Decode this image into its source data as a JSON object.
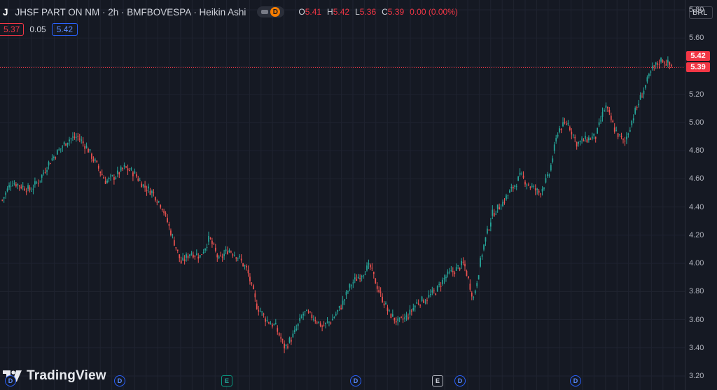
{
  "legend": {
    "symbol_letter": "J",
    "title": "JHSF PART ON NM · 2h · BMFBOVESPA · Heikin Ashi",
    "badge": "D",
    "ohlc": [
      {
        "key": "O",
        "value": "5.41"
      },
      {
        "key": "H",
        "value": "5.42"
      },
      {
        "key": "L",
        "value": "5.36"
      },
      {
        "key": "C",
        "value": "5.39"
      }
    ],
    "change": "0.00 (0.00%)"
  },
  "trade": {
    "sell": "5.37",
    "spread": "0.05",
    "buy": "5.42"
  },
  "currency": "BRL",
  "price_tags": {
    "ask": "5.42",
    "last": "5.39"
  },
  "logo_text": "TradingView",
  "events": [
    {
      "type": "dividend",
      "label": "D"
    },
    {
      "type": "dividend",
      "label": "D"
    },
    {
      "type": "earnings-upcoming",
      "label": "E"
    },
    {
      "type": "dividend",
      "label": "D"
    },
    {
      "type": "earnings",
      "label": "E"
    },
    {
      "type": "dividend",
      "label": "D"
    },
    {
      "type": "dividend",
      "label": "D"
    }
  ],
  "colors": {
    "up": "#26a69a",
    "down": "#ef5350",
    "price_tag": "#f23645",
    "background": "#151923"
  },
  "chart_data": {
    "type": "candlestick",
    "chart_style": "Heikin Ashi",
    "interval": "2h",
    "currency": "BRL",
    "y_ticks": [
      "5.80",
      "5.60",
      "5.40",
      "5.20",
      "5.00",
      "4.80",
      "4.60",
      "4.40",
      "4.20",
      "4.00",
      "3.80",
      "3.60",
      "3.40",
      "3.20"
    ],
    "ylim": [
      3.2,
      5.82
    ],
    "last_price": 5.39,
    "grid": true,
    "approx_close_path": [
      4.45,
      4.58,
      4.55,
      4.52,
      4.6,
      4.72,
      4.8,
      4.88,
      4.9,
      4.82,
      4.7,
      4.58,
      4.62,
      4.68,
      4.64,
      4.55,
      4.5,
      4.4,
      4.2,
      4.0,
      4.08,
      4.05,
      4.18,
      4.02,
      4.1,
      4.05,
      3.95,
      3.7,
      3.6,
      3.55,
      3.4,
      3.5,
      3.65,
      3.62,
      3.55,
      3.6,
      3.7,
      3.85,
      3.92,
      3.98,
      3.8,
      3.65,
      3.58,
      3.62,
      3.72,
      3.75,
      3.8,
      3.9,
      3.95,
      4.0,
      3.75,
      4.1,
      4.35,
      4.42,
      4.52,
      4.62,
      4.55,
      4.5,
      4.62,
      4.95,
      5.0,
      4.85,
      4.88,
      4.9,
      5.12,
      4.95,
      4.85,
      5.05,
      5.22,
      5.38,
      5.45,
      5.4
    ]
  }
}
